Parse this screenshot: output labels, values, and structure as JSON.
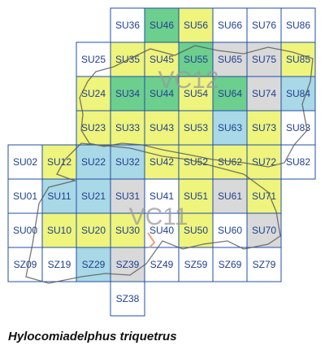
{
  "map": {
    "cells": [
      {
        "label": "SU36",
        "color": "#ffffff"
      },
      {
        "label": "SU46",
        "color": "#6ccf8e"
      },
      {
        "label": "SU56",
        "color": "#eef47c"
      },
      {
        "label": "SU66",
        "color": "#ffffff"
      },
      {
        "label": "SU76",
        "color": "#ffffff"
      },
      {
        "label": "SU86",
        "color": "#ffffff"
      },
      {
        "label": "SU25",
        "color": "#ffffff"
      },
      {
        "label": "SU35",
        "color": "#eef47c"
      },
      {
        "label": "SU45",
        "color": "#eef47c"
      },
      {
        "label": "SU55",
        "color": "#6ccf8e"
      },
      {
        "label": "SU65",
        "color": "#d9d9d9"
      },
      {
        "label": "SU75",
        "color": "#d9d9d9"
      },
      {
        "label": "SU85",
        "color": "#eef47c"
      },
      {
        "label": "SU24",
        "color": "#eef47c"
      },
      {
        "label": "SU34",
        "color": "#6ccf8e"
      },
      {
        "label": "SU44",
        "color": "#6ccf8e"
      },
      {
        "label": "SU54",
        "color": "#eef47c"
      },
      {
        "label": "SU64",
        "color": "#6ccf8e"
      },
      {
        "label": "SU74",
        "color": "#d9d9d9"
      },
      {
        "label": "SU84",
        "color": "#a9d8e6"
      },
      {
        "label": "SU23",
        "color": "#eef47c"
      },
      {
        "label": "SU33",
        "color": "#eef47c"
      },
      {
        "label": "SU43",
        "color": "#eef47c"
      },
      {
        "label": "SU53",
        "color": "#eef47c"
      },
      {
        "label": "SU63",
        "color": "#a9d8e6"
      },
      {
        "label": "SU73",
        "color": "#eef47c"
      },
      {
        "label": "SU83",
        "color": "#ffffff"
      },
      {
        "label": "SU02",
        "color": "#ffffff"
      },
      {
        "label": "SU12",
        "color": "#eef47c"
      },
      {
        "label": "SU22",
        "color": "#a9d8e6"
      },
      {
        "label": "SU32",
        "color": "#a9d8e6"
      },
      {
        "label": "SU42",
        "color": "#eef47c"
      },
      {
        "label": "SU52",
        "color": "#eef47c"
      },
      {
        "label": "SU62",
        "color": "#eef47c"
      },
      {
        "label": "SU72",
        "color": "#eef47c"
      },
      {
        "label": "SU82",
        "color": "#ffffff"
      },
      {
        "label": "SU01",
        "color": "#ffffff"
      },
      {
        "label": "SU11",
        "color": "#a9d8e6"
      },
      {
        "label": "SU21",
        "color": "#a9d8e6"
      },
      {
        "label": "SU31",
        "color": "#d9d9d9"
      },
      {
        "label": "SU41",
        "color": "#ffffff"
      },
      {
        "label": "SU51",
        "color": "#eef47c"
      },
      {
        "label": "SU61",
        "color": "#d9d9d9"
      },
      {
        "label": "SU71",
        "color": "#eef47c"
      },
      {
        "label": "SU00",
        "color": "#ffffff"
      },
      {
        "label": "SU10",
        "color": "#eef47c"
      },
      {
        "label": "SU20",
        "color": "#eef47c"
      },
      {
        "label": "SU30",
        "color": "#eef47c"
      },
      {
        "label": "SU40",
        "color": "#ffffff"
      },
      {
        "label": "SU50",
        "color": "#eef47c"
      },
      {
        "label": "SU60",
        "color": "#ffffff"
      },
      {
        "label": "SU70",
        "color": "#d9d9d9"
      },
      {
        "label": "SZ09",
        "color": "#ffffff"
      },
      {
        "label": "SZ19",
        "color": "#ffffff"
      },
      {
        "label": "SZ29",
        "color": "#a9d8e6"
      },
      {
        "label": "SZ39",
        "color": "#d9d9d9"
      },
      {
        "label": "SZ49",
        "color": "#ffffff"
      },
      {
        "label": "SZ59",
        "color": "#ffffff"
      },
      {
        "label": "SZ69",
        "color": "#ffffff"
      },
      {
        "label": "SZ79",
        "color": "#ffffff"
      },
      {
        "label": "SZ38",
        "color": "#ffffff"
      }
    ],
    "regions": [
      "VC12",
      "VC11"
    ],
    "species": "Hylocomiadelphus triquetrus"
  }
}
